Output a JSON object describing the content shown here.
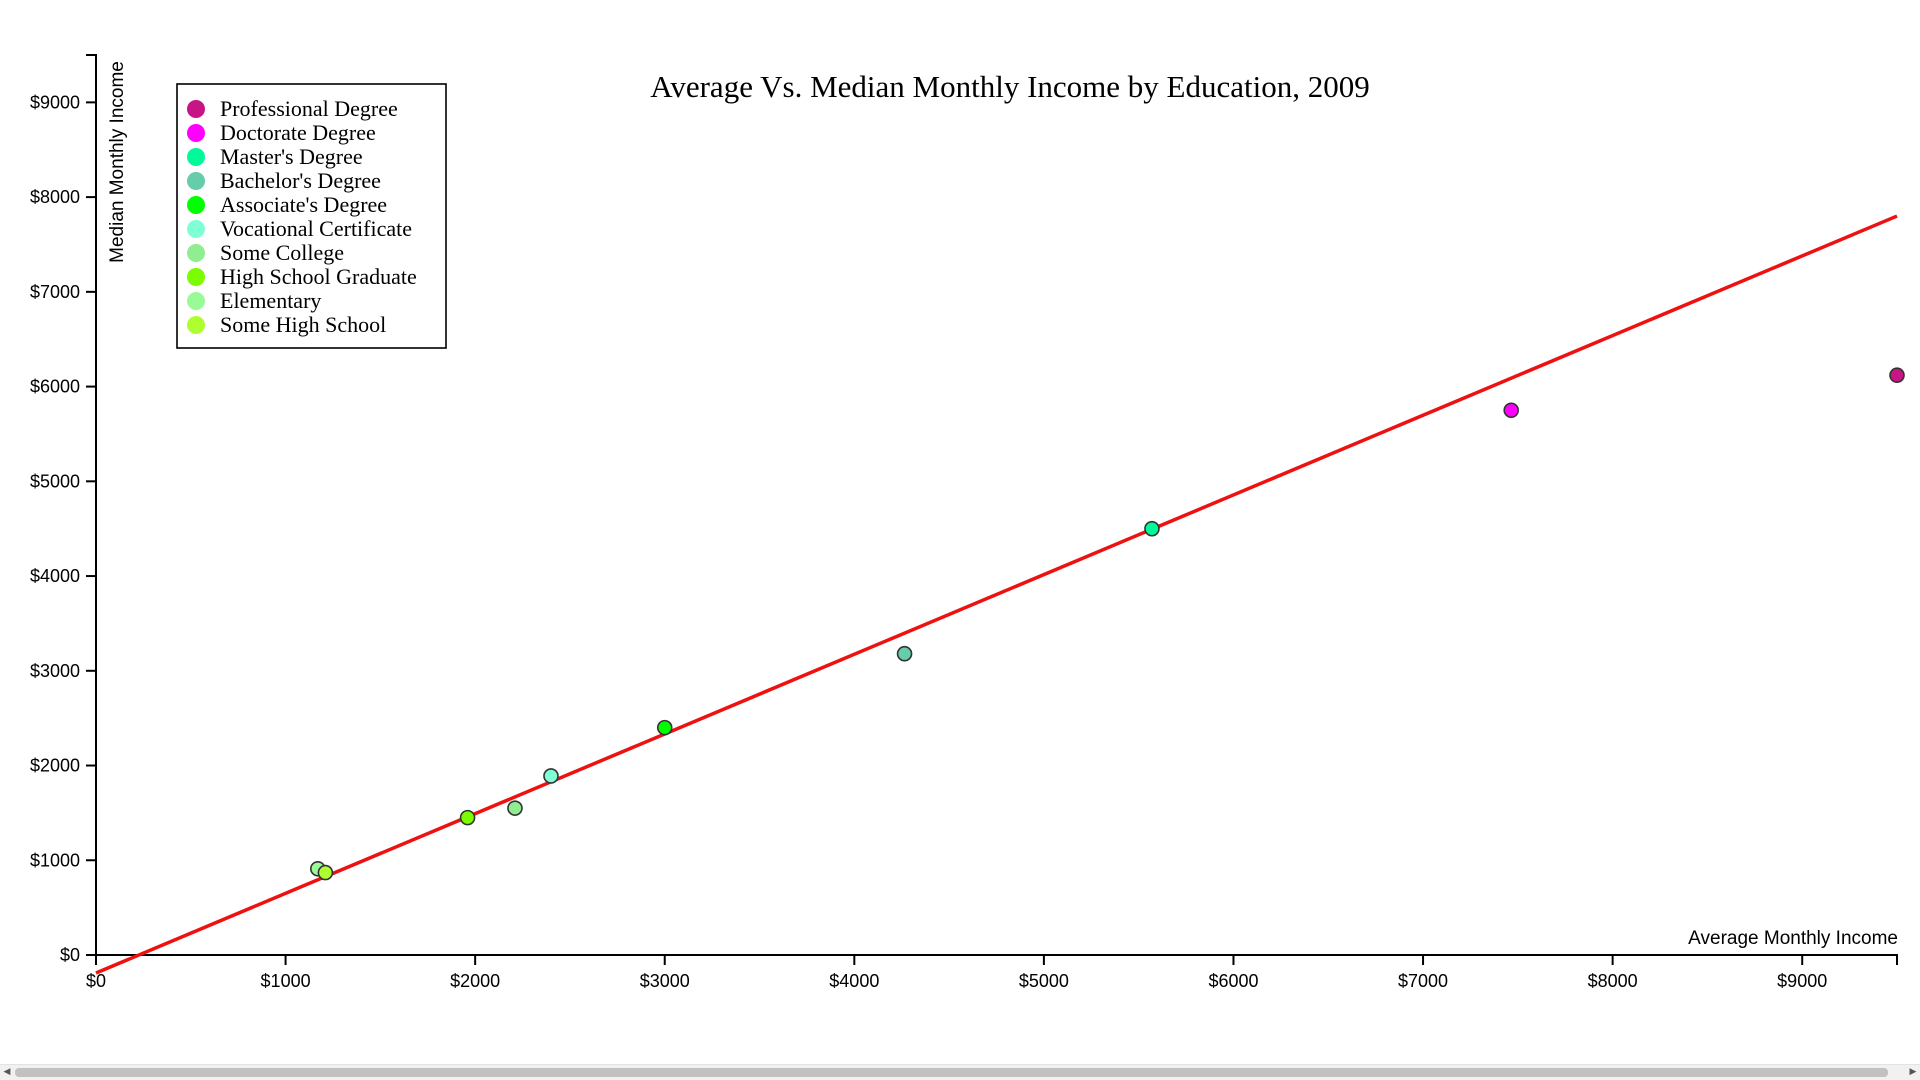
{
  "chart_data": {
    "type": "scatter",
    "title": "Average Vs. Median Monthly Income by Education, 2009",
    "xlabel": "Average Monthly Income",
    "ylabel": "Median Monthly Income",
    "xlim": [
      0,
      9500
    ],
    "ylim": [
      0,
      9500
    ],
    "x_ticks": [
      0,
      1000,
      2000,
      3000,
      4000,
      5000,
      6000,
      7000,
      8000,
      9000
    ],
    "x_tick_labels": [
      "$0",
      "$1000",
      "$2000",
      "$3000",
      "$4000",
      "$5000",
      "$6000",
      "$7000",
      "$8000",
      "$9000"
    ],
    "y_ticks": [
      0,
      1000,
      2000,
      3000,
      4000,
      5000,
      6000,
      7000,
      8000,
      9000
    ],
    "y_tick_labels": [
      "$0",
      "$1000",
      "$2000",
      "$3000",
      "$4000",
      "$5000",
      "$6000",
      "$7000",
      "$8000",
      "$9000"
    ],
    "grid": false,
    "legend_position": "top-left",
    "series": [
      {
        "name": "Professional Degree",
        "color": "#c71585",
        "x": 9500,
        "y": 6120
      },
      {
        "name": "Doctorate Degree",
        "color": "#ff00ff",
        "x": 7465,
        "y": 5750
      },
      {
        "name": "Master's Degree",
        "color": "#00fa9a",
        "x": 5570,
        "y": 4500
      },
      {
        "name": "Bachelor's Degree",
        "color": "#66cdaa",
        "x": 4265,
        "y": 3180
      },
      {
        "name": "Associate's Degree",
        "color": "#00ff00",
        "x": 3000,
        "y": 2400
      },
      {
        "name": "Vocational Certificate",
        "color": "#7fffd4",
        "x": 2400,
        "y": 1890
      },
      {
        "name": "Some College",
        "color": "#90ee90",
        "x": 2210,
        "y": 1550
      },
      {
        "name": "High School Graduate",
        "color": "#7cfc00",
        "x": 1960,
        "y": 1450
      },
      {
        "name": "Elementary",
        "color": "#98fb98",
        "x": 1170,
        "y": 910
      },
      {
        "name": "Some High School",
        "color": "#adff2f",
        "x": 1210,
        "y": 870
      }
    ],
    "trend_line": {
      "color": "#ee1111",
      "points": [
        [
          0,
          -190
        ],
        [
          9500,
          7800
        ]
      ]
    }
  }
}
